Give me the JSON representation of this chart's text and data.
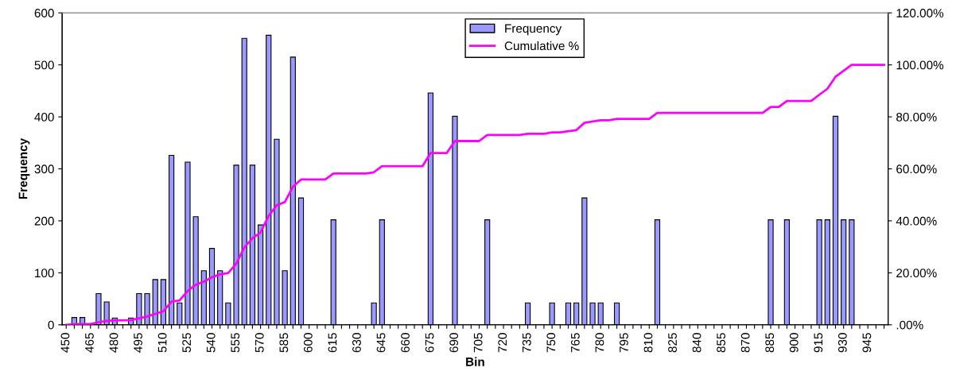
{
  "chart_data": {
    "type": "bar",
    "xlabel": "Bin",
    "ylabel": "Frequency",
    "categories": [
      "450",
      null,
      null,
      "465",
      null,
      null,
      "480",
      null,
      null,
      "495",
      null,
      null,
      "510",
      null,
      null,
      "525",
      null,
      null,
      "540",
      null,
      null,
      "555",
      null,
      null,
      "570",
      null,
      null,
      "585",
      null,
      null,
      "600",
      null,
      null,
      "615",
      null,
      null,
      "630",
      null,
      null,
      "645",
      null,
      null,
      "660",
      null,
      null,
      "675",
      null,
      null,
      "690",
      null,
      null,
      "705",
      null,
      null,
      "720",
      null,
      null,
      "735",
      null,
      null,
      "750",
      null,
      null,
      "765",
      null,
      null,
      "780",
      null,
      null,
      "795",
      null,
      null,
      "810",
      null,
      null,
      "825",
      null,
      null,
      "840",
      null,
      null,
      "855",
      null,
      null,
      "870",
      null,
      null,
      "885",
      null,
      null,
      "900",
      null,
      null,
      "915",
      null,
      null,
      "930",
      null,
      null,
      "945",
      null,
      null
    ],
    "series": [
      {
        "name": "Frequency",
        "color": "#9999ff",
        "values": [
          0,
          14,
          14,
          0,
          60,
          44,
          13,
          0,
          13,
          60,
          60,
          87,
          87,
          326,
          42,
          313,
          208,
          104,
          147,
          104,
          42,
          307,
          551,
          307,
          192,
          557,
          357,
          104,
          515,
          244,
          0,
          0,
          0,
          202,
          0,
          0,
          0,
          0,
          42,
          202,
          0,
          0,
          0,
          0,
          0,
          446,
          0,
          0,
          401,
          0,
          0,
          0,
          202,
          0,
          0,
          0,
          0,
          42,
          0,
          0,
          42,
          0,
          42,
          42,
          244,
          42,
          42,
          0,
          42,
          0,
          0,
          0,
          0,
          202,
          0,
          0,
          0,
          0,
          0,
          0,
          0,
          0,
          0,
          0,
          0,
          0,
          0,
          202,
          0,
          202,
          0,
          0,
          0,
          202,
          202,
          401,
          202,
          202,
          0,
          0,
          0,
          0
        ]
      },
      {
        "name": "Cumulative %",
        "type": "line",
        "axis": "y2",
        "color": "#ff00ff",
        "values": [
          0.0,
          0.2,
          0.3,
          0.3,
          1.0,
          1.5,
          1.7,
          1.7,
          1.8,
          2.5,
          3.2,
          4.2,
          5.2,
          8.9,
          9.4,
          13.0,
          15.4,
          16.6,
          18.3,
          19.4,
          19.9,
          23.5,
          29.8,
          33.3,
          35.5,
          41.9,
          46.0,
          47.2,
          53.1,
          55.9,
          55.9,
          55.9,
          55.9,
          58.2,
          58.2,
          58.2,
          58.2,
          58.2,
          58.7,
          61.0,
          61.0,
          61.0,
          61.0,
          61.0,
          61.0,
          66.1,
          66.1,
          66.1,
          70.7,
          70.7,
          70.7,
          70.7,
          73.0,
          73.0,
          73.0,
          73.0,
          73.0,
          73.5,
          73.5,
          73.5,
          74.0,
          74.0,
          74.5,
          74.9,
          77.7,
          78.2,
          78.7,
          78.7,
          79.2,
          79.2,
          79.2,
          79.2,
          79.2,
          81.5,
          81.5,
          81.5,
          81.5,
          81.5,
          81.5,
          81.5,
          81.5,
          81.5,
          81.5,
          81.5,
          81.5,
          81.5,
          81.5,
          83.8,
          83.8,
          86.1,
          86.1,
          86.1,
          86.1,
          88.5,
          90.8,
          95.4,
          97.7,
          100.0,
          100.0,
          100.0,
          100.0,
          100.0
        ]
      }
    ],
    "ylim": [
      0,
      600
    ],
    "yticks": [
      0,
      100,
      200,
      300,
      400,
      500,
      600
    ],
    "y2lim": [
      0,
      120
    ],
    "y2ticks": [
      {
        "value": 0,
        "label": ".00%"
      },
      {
        "value": 20,
        "label": "20.00%"
      },
      {
        "value": 40,
        "label": "40.00%"
      },
      {
        "value": 60,
        "label": "60.00%"
      },
      {
        "value": 80,
        "label": "80.00%"
      },
      {
        "value": 100,
        "label": "100.00%"
      },
      {
        "value": 120,
        "label": "120.00%"
      }
    ],
    "legend": "top",
    "grid": false
  }
}
